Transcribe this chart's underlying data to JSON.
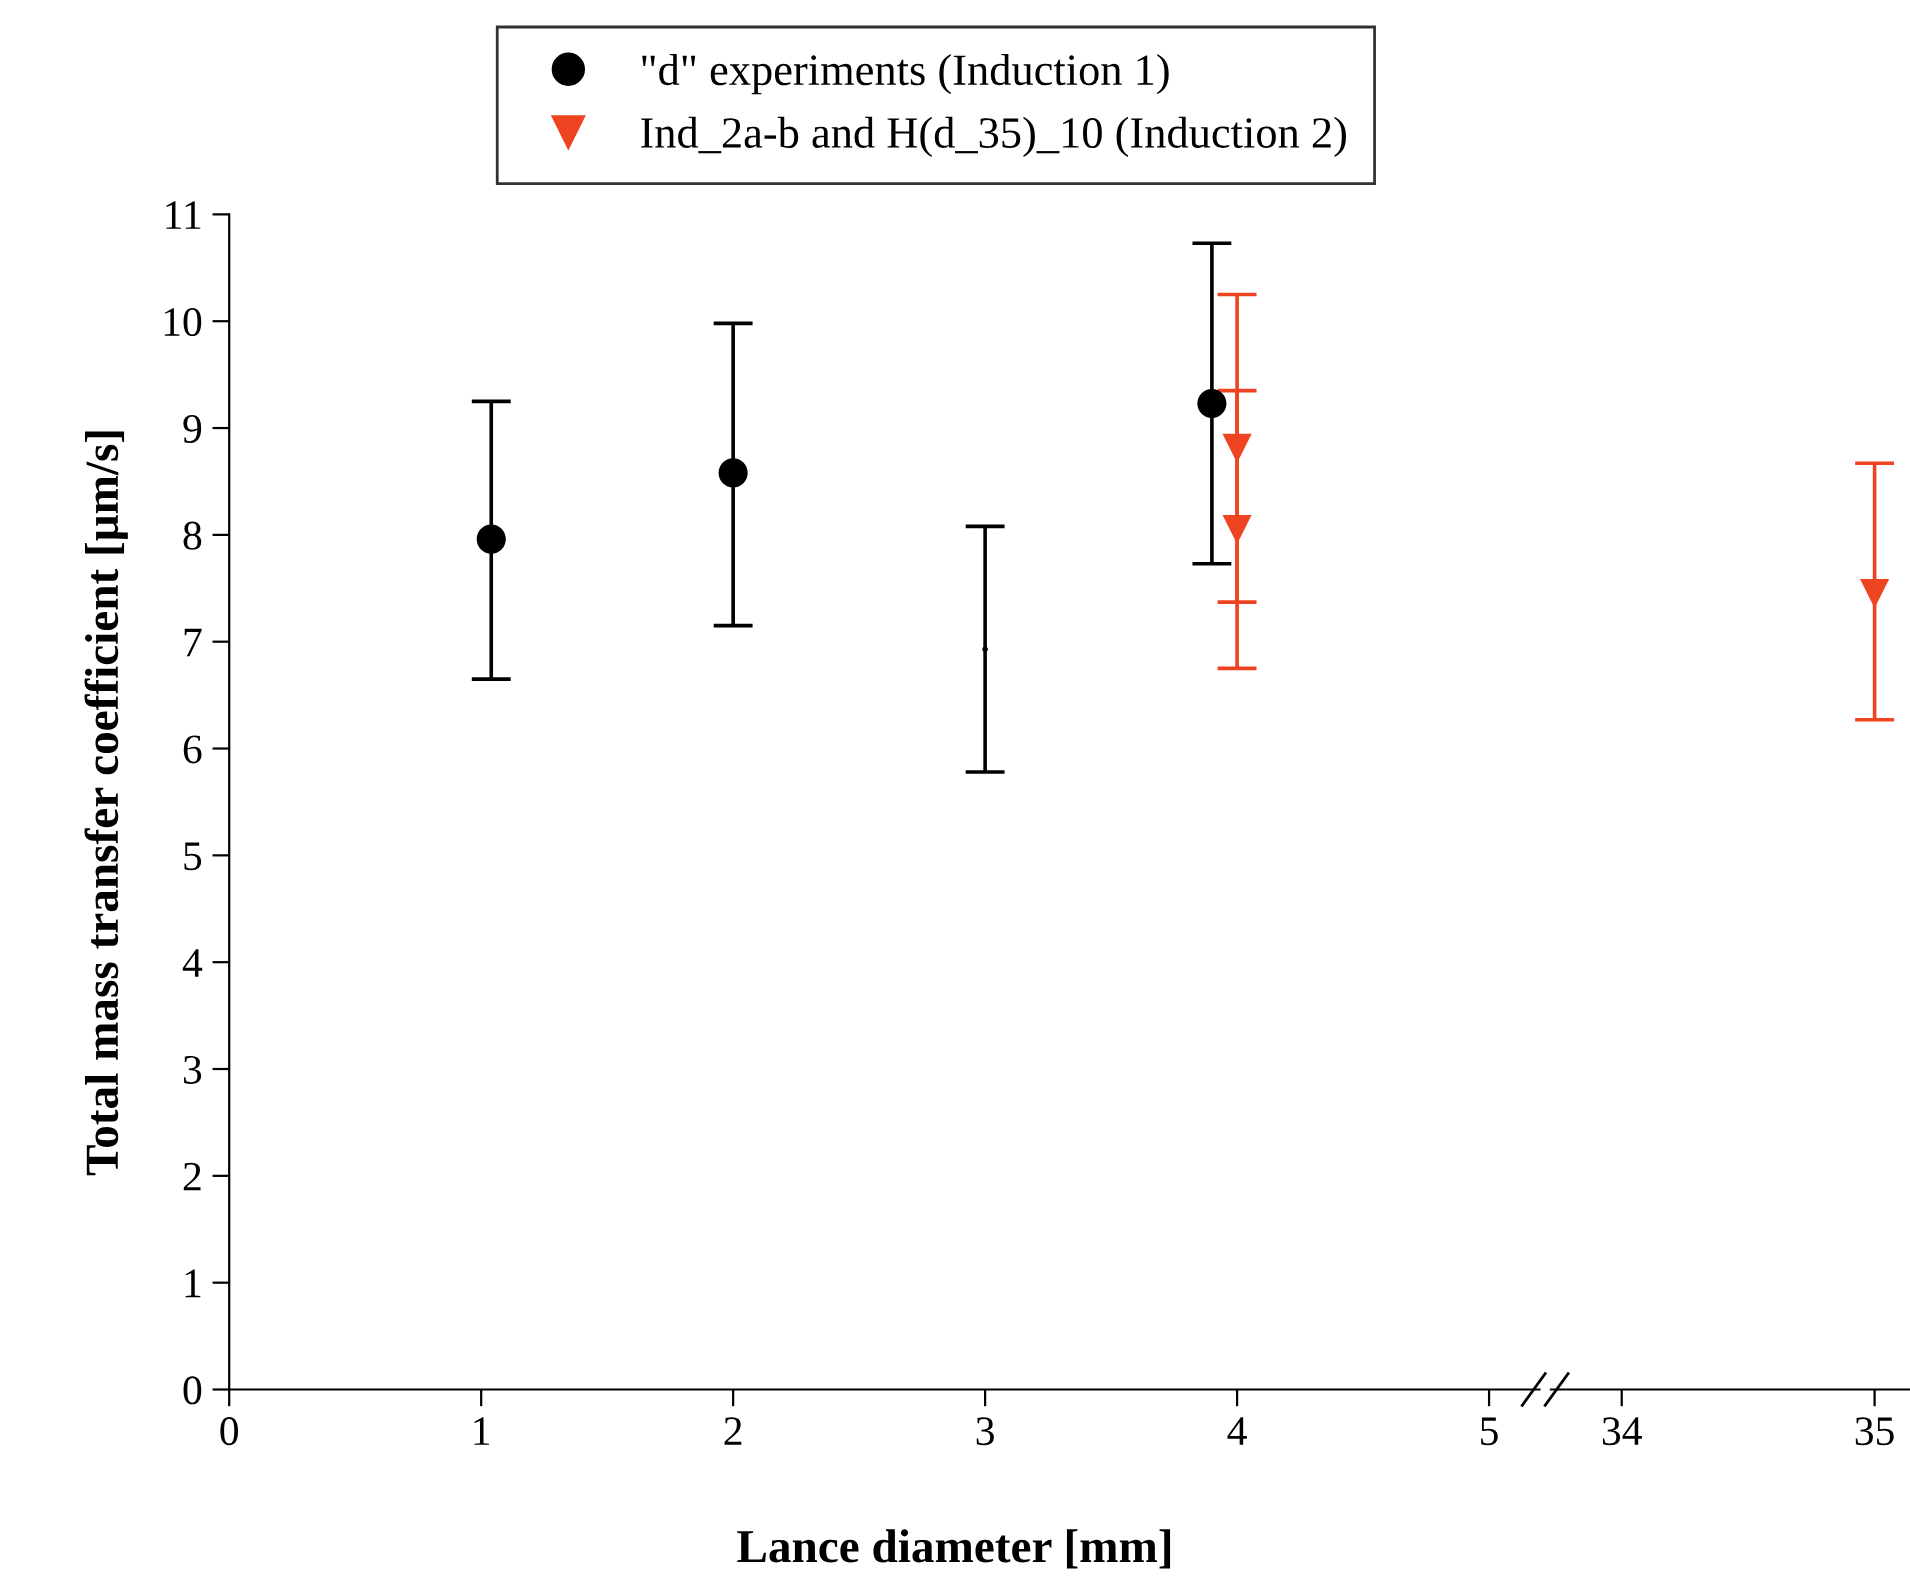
{
  "chart_data": [
    {
      "type": "scatter",
      "xlabel": "Lance diameter [mm]",
      "ylabel": "Total mass transfer coefficient [μm/s]",
      "xlim": [
        0,
        5.2
      ],
      "xticks": [
        0,
        1,
        2,
        3,
        4,
        5
      ],
      "ylim": [
        0,
        11
      ],
      "yticks": [
        0,
        1,
        2,
        3,
        4,
        5,
        6,
        7,
        8,
        9,
        10,
        11
      ],
      "grid": false,
      "legend": "top",
      "series": [
        {
          "name": "\"d\" experiments (Induction 1)",
          "color": "#000000",
          "marker": "circle",
          "x": [
            1.04,
            2,
            3.9
          ],
          "values": [
            7.96,
            8.58,
            9.23
          ],
          "errors": [
            [
              6.65,
              9.25
            ],
            [
              7.15,
              9.98
            ],
            [
              7.73,
              10.73
            ]
          ]
        },
        {
          "color": "#000000",
          "marker": "none",
          "x": [
            3
          ],
          "values": [
            6.93
          ],
          "errors": [
            [
              5.78,
              8.08
            ]
          ]
        },
        {
          "name": "Ind_2a-b and H(d_35)_10 (Induction 2)",
          "color": "#ee4422",
          "marker": "triangle",
          "x": [
            4,
            4
          ],
          "values": [
            8.81,
            8.05
          ],
          "errors": [
            [
              7.37,
              10.25
            ],
            [
              6.75,
              9.35
            ]
          ]
        }
      ]
    },
    {
      "type": "scatter",
      "xlim": [
        33.72,
        35.14
      ],
      "xticks": [
        34,
        35
      ],
      "ylim": [
        0,
        11
      ],
      "tick_labels": "x",
      "grid": false,
      "series": [
        {
          "color": "#ee4422",
          "marker": "triangle",
          "x": [
            35
          ],
          "values": [
            7.45
          ],
          "errors": [
            [
              6.27,
              8.67
            ]
          ]
        }
      ]
    }
  ]
}
